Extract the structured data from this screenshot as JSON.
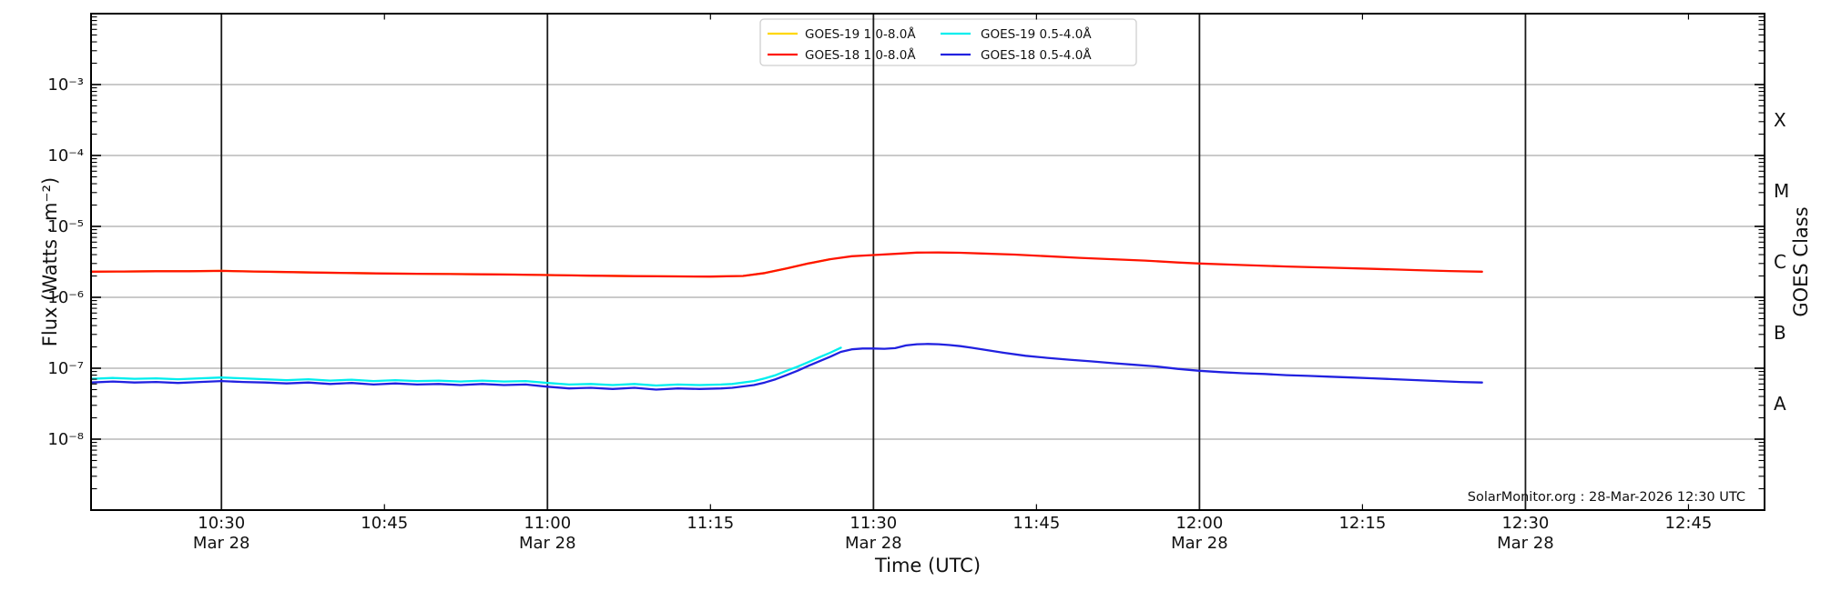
{
  "chart_data": {
    "type": "line",
    "title": "",
    "xlabel": "Time (UTC)",
    "ylabel": "Flux (Watts · m⁻²)",
    "ylabel_right": "GOES Class",
    "watermark": "SolarMonitor.org : 28-Mar-2026 12:30 UTC",
    "xlim_minutes_utc": [
      618,
      772
    ],
    "ylim": [
      1e-09,
      0.01
    ],
    "grid": {
      "vertical_major": true,
      "horizontal_decades": true
    },
    "legend_position": "top-center",
    "x_ticks": [
      {
        "minutes": 630,
        "label": "10:30",
        "date": "Mar 28",
        "major": true
      },
      {
        "minutes": 645,
        "label": "10:45",
        "major": false
      },
      {
        "minutes": 660,
        "label": "11:00",
        "date": "Mar 28",
        "major": true
      },
      {
        "minutes": 675,
        "label": "11:15",
        "major": false
      },
      {
        "minutes": 690,
        "label": "11:30",
        "date": "Mar 28",
        "major": true
      },
      {
        "minutes": 705,
        "label": "11:45",
        "major": false
      },
      {
        "minutes": 720,
        "label": "12:00",
        "date": "Mar 28",
        "major": true
      },
      {
        "minutes": 735,
        "label": "12:15",
        "major": false
      },
      {
        "minutes": 750,
        "label": "12:30",
        "date": "Mar 28",
        "major": true
      },
      {
        "minutes": 765,
        "label": "12:45",
        "major": false
      }
    ],
    "y_ticks": [
      {
        "label": "10⁻³",
        "exponent": -3
      },
      {
        "label": "10⁻⁴",
        "exponent": -4
      },
      {
        "label": "10⁻⁵",
        "exponent": -5
      },
      {
        "label": "10⁻⁶",
        "exponent": -6
      },
      {
        "label": "10⁻⁷",
        "exponent": -7
      },
      {
        "label": "10⁻⁸",
        "exponent": -8
      }
    ],
    "goes_classes": [
      {
        "label": "X",
        "log10_flux": -3.5
      },
      {
        "label": "M",
        "log10_flux": -4.5
      },
      {
        "label": "C",
        "log10_flux": -5.5
      },
      {
        "label": "B",
        "log10_flux": -6.5
      },
      {
        "label": "A",
        "log10_flux": -7.5
      }
    ],
    "series": [
      {
        "name": "GOES-19 1.0-8.0Å",
        "color": "#ffd700",
        "points": [
          [
            618,
            2.3e-06
          ],
          [
            621,
            2.31e-06
          ],
          [
            624,
            2.33e-06
          ],
          [
            627,
            2.33e-06
          ],
          [
            630,
            2.36e-06
          ],
          [
            633,
            2.31e-06
          ],
          [
            636,
            2.27e-06
          ],
          [
            639,
            2.23e-06
          ],
          [
            642,
            2.2e-06
          ],
          [
            645,
            2.17e-06
          ],
          [
            648,
            2.15e-06
          ],
          [
            651,
            2.13e-06
          ],
          [
            654,
            2.11e-06
          ],
          [
            657,
            2.09e-06
          ],
          [
            660,
            2.06e-06
          ],
          [
            664,
            2.02e-06
          ],
          [
            668,
            1.99e-06
          ],
          [
            672,
            1.97e-06
          ],
          [
            675,
            1.96e-06
          ],
          [
            678,
            2e-06
          ],
          [
            680,
            2.2e-06
          ],
          [
            682,
            2.55e-06
          ],
          [
            684,
            3e-06
          ],
          [
            686,
            3.45e-06
          ]
        ]
      },
      {
        "name": "GOES-18 1.0-8.0Å",
        "color": "#ff1400",
        "points": [
          [
            618,
            2.3e-06
          ],
          [
            621,
            2.31e-06
          ],
          [
            624,
            2.33e-06
          ],
          [
            627,
            2.33e-06
          ],
          [
            630,
            2.36e-06
          ],
          [
            633,
            2.31e-06
          ],
          [
            636,
            2.27e-06
          ],
          [
            639,
            2.23e-06
          ],
          [
            642,
            2.2e-06
          ],
          [
            645,
            2.17e-06
          ],
          [
            648,
            2.15e-06
          ],
          [
            651,
            2.13e-06
          ],
          [
            654,
            2.11e-06
          ],
          [
            657,
            2.09e-06
          ],
          [
            660,
            2.06e-06
          ],
          [
            664,
            2.02e-06
          ],
          [
            668,
            1.99e-06
          ],
          [
            672,
            1.97e-06
          ],
          [
            675,
            1.96e-06
          ],
          [
            678,
            2e-06
          ],
          [
            680,
            2.2e-06
          ],
          [
            682,
            2.55e-06
          ],
          [
            684,
            3e-06
          ],
          [
            686,
            3.45e-06
          ],
          [
            688,
            3.8e-06
          ],
          [
            690,
            3.95e-06
          ],
          [
            692,
            4.1e-06
          ],
          [
            694,
            4.27e-06
          ],
          [
            696,
            4.28e-06
          ],
          [
            698,
            4.25e-06
          ],
          [
            700,
            4.15e-06
          ],
          [
            703,
            4e-06
          ],
          [
            706,
            3.8e-06
          ],
          [
            709,
            3.6e-06
          ],
          [
            712,
            3.45e-06
          ],
          [
            715,
            3.3e-06
          ],
          [
            718,
            3.1e-06
          ],
          [
            720,
            3e-06
          ],
          [
            724,
            2.85e-06
          ],
          [
            728,
            2.72e-06
          ],
          [
            732,
            2.62e-06
          ],
          [
            736,
            2.52e-06
          ],
          [
            740,
            2.42e-06
          ],
          [
            743,
            2.35e-06
          ],
          [
            746,
            2.3e-06
          ]
        ]
      },
      {
        "name": "GOES-19 0.5-4.0Å",
        "color": "#00eeee",
        "points": [
          [
            618,
            7.1e-08
          ],
          [
            620,
            7.3e-08
          ],
          [
            622,
            7.1e-08
          ],
          [
            624,
            7.2e-08
          ],
          [
            626,
            7e-08
          ],
          [
            628,
            7.2e-08
          ],
          [
            630,
            7.4e-08
          ],
          [
            632,
            7.2e-08
          ],
          [
            634,
            7e-08
          ],
          [
            636,
            6.8e-08
          ],
          [
            638,
            7e-08
          ],
          [
            640,
            6.7e-08
          ],
          [
            642,
            6.9e-08
          ],
          [
            644,
            6.6e-08
          ],
          [
            646,
            6.8e-08
          ],
          [
            648,
            6.6e-08
          ],
          [
            650,
            6.7e-08
          ],
          [
            652,
            6.5e-08
          ],
          [
            654,
            6.7e-08
          ],
          [
            656,
            6.5e-08
          ],
          [
            658,
            6.6e-08
          ],
          [
            660,
            6.2e-08
          ],
          [
            662,
            5.9e-08
          ],
          [
            664,
            6e-08
          ],
          [
            666,
            5.8e-08
          ],
          [
            668,
            6e-08
          ],
          [
            670,
            5.7e-08
          ],
          [
            672,
            5.9e-08
          ],
          [
            674,
            5.8e-08
          ],
          [
            676,
            5.9e-08
          ],
          [
            677,
            6e-08
          ],
          [
            679,
            6.6e-08
          ],
          [
            680,
            7.2e-08
          ],
          [
            681,
            8e-08
          ],
          [
            682,
            9.2e-08
          ],
          [
            683,
            1.05e-07
          ],
          [
            684,
            1.22e-07
          ],
          [
            685,
            1.42e-07
          ],
          [
            686,
            1.65e-07
          ],
          [
            687,
            1.95e-07
          ]
        ]
      },
      {
        "name": "GOES-18 0.5-4.0Å",
        "color": "#2121e0",
        "points": [
          [
            618,
            6.3e-08
          ],
          [
            620,
            6.5e-08
          ],
          [
            622,
            6.3e-08
          ],
          [
            624,
            6.4e-08
          ],
          [
            626,
            6.2e-08
          ],
          [
            628,
            6.4e-08
          ],
          [
            630,
            6.6e-08
          ],
          [
            632,
            6.4e-08
          ],
          [
            634,
            6.3e-08
          ],
          [
            636,
            6.1e-08
          ],
          [
            638,
            6.3e-08
          ],
          [
            640,
            6e-08
          ],
          [
            642,
            6.2e-08
          ],
          [
            644,
            5.9e-08
          ],
          [
            646,
            6.1e-08
          ],
          [
            648,
            5.9e-08
          ],
          [
            650,
            6e-08
          ],
          [
            652,
            5.8e-08
          ],
          [
            654,
            6e-08
          ],
          [
            656,
            5.8e-08
          ],
          [
            658,
            5.9e-08
          ],
          [
            660,
            5.5e-08
          ],
          [
            662,
            5.2e-08
          ],
          [
            664,
            5.3e-08
          ],
          [
            666,
            5.1e-08
          ],
          [
            668,
            5.3e-08
          ],
          [
            670,
            5e-08
          ],
          [
            672,
            5.2e-08
          ],
          [
            674,
            5.1e-08
          ],
          [
            676,
            5.2e-08
          ],
          [
            677,
            5.3e-08
          ],
          [
            679,
            5.8e-08
          ],
          [
            680,
            6.3e-08
          ],
          [
            681,
            7e-08
          ],
          [
            682,
            8e-08
          ],
          [
            683,
            9.2e-08
          ],
          [
            684,
            1.08e-07
          ],
          [
            685,
            1.25e-07
          ],
          [
            686,
            1.45e-07
          ],
          [
            687,
            1.7e-07
          ],
          [
            688,
            1.85e-07
          ],
          [
            689,
            1.9e-07
          ],
          [
            690,
            1.9e-07
          ],
          [
            691,
            1.88e-07
          ],
          [
            692,
            1.92e-07
          ],
          [
            693,
            2.1e-07
          ],
          [
            694,
            2.18e-07
          ],
          [
            695,
            2.2e-07
          ],
          [
            696,
            2.18e-07
          ],
          [
            697,
            2.12e-07
          ],
          [
            698,
            2.05e-07
          ],
          [
            699,
            1.95e-07
          ],
          [
            700,
            1.85e-07
          ],
          [
            702,
            1.65e-07
          ],
          [
            704,
            1.5e-07
          ],
          [
            706,
            1.4e-07
          ],
          [
            708,
            1.32e-07
          ],
          [
            710,
            1.25e-07
          ],
          [
            712,
            1.18e-07
          ],
          [
            714,
            1.12e-07
          ],
          [
            716,
            1.06e-07
          ],
          [
            718,
            9.8e-08
          ],
          [
            720,
            9.2e-08
          ],
          [
            722,
            8.8e-08
          ],
          [
            724,
            8.5e-08
          ],
          [
            726,
            8.3e-08
          ],
          [
            728,
            8e-08
          ],
          [
            730,
            7.8e-08
          ],
          [
            732,
            7.6e-08
          ],
          [
            734,
            7.4e-08
          ],
          [
            736,
            7.2e-08
          ],
          [
            738,
            7e-08
          ],
          [
            740,
            6.8e-08
          ],
          [
            742,
            6.6e-08
          ],
          [
            744,
            6.4e-08
          ],
          [
            746,
            6.3e-08
          ]
        ]
      }
    ]
  }
}
